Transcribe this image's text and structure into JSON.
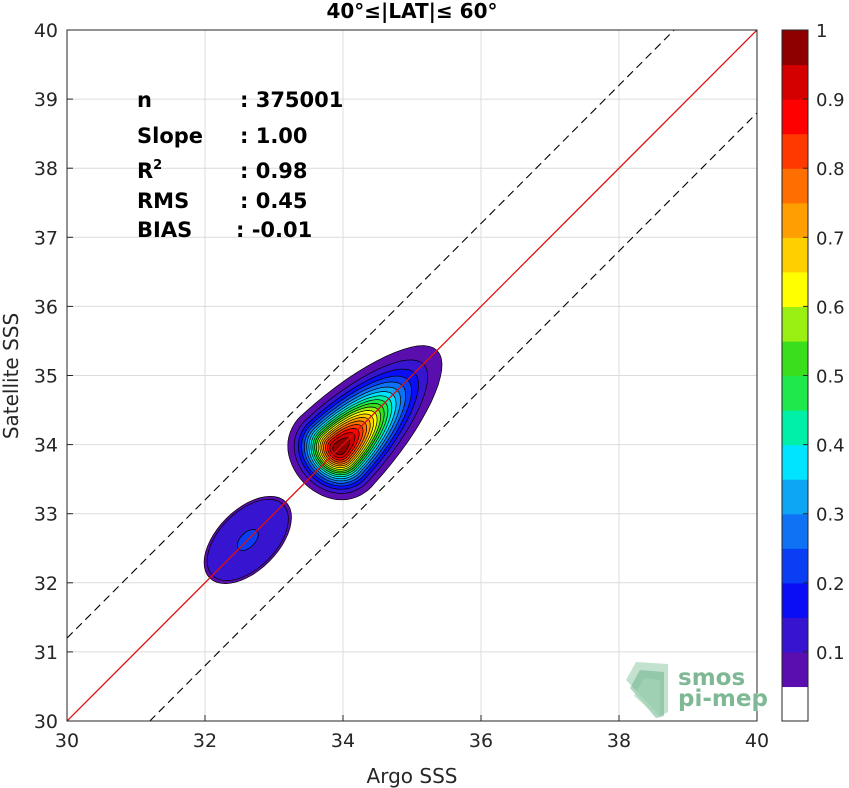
{
  "chart_data": {
    "type": "heatmap",
    "title": "40°≤|LAT|≤ 60°",
    "xlabel": "Argo SSS",
    "ylabel": "Satellite SSS",
    "xlim": [
      30,
      40
    ],
    "ylim": [
      30,
      40
    ],
    "xticks": [
      "30",
      "32",
      "34",
      "36",
      "38",
      "40"
    ],
    "yticks": [
      "30",
      "31",
      "32",
      "33",
      "34",
      "35",
      "36",
      "37",
      "38",
      "39",
      "40"
    ],
    "grid": true,
    "reference_lines": [
      {
        "name": "1:1 line",
        "slope": 1,
        "intercept": 0,
        "style": "solid",
        "color": "#dd1111"
      },
      {
        "name": "+1.2 offset",
        "slope": 1,
        "intercept": 1.2,
        "style": "dashed",
        "color": "#000000"
      },
      {
        "name": "-1.2 offset",
        "slope": 1,
        "intercept": -1.2,
        "style": "dashed",
        "color": "#000000"
      }
    ],
    "density_peaks": [
      {
        "x": 33.95,
        "y": 33.95,
        "peak_density": 1.0
      },
      {
        "x": 32.62,
        "y": 32.62,
        "peak_density": 0.25
      }
    ],
    "stats": [
      {
        "label": "n",
        "value": ": 375001"
      },
      {
        "label": "Slope",
        "value": ": 1.00"
      },
      {
        "label": "R²",
        "value": ": 0.98"
      },
      {
        "label": "RMS",
        "value": ": 0.45"
      },
      {
        "label": "BIAS",
        "value": ": -0.01"
      }
    ],
    "colorbar": {
      "ticks": [
        "0.1",
        "0.2",
        "0.3",
        "0.4",
        "0.5",
        "0.6",
        "0.7",
        "0.8",
        "0.9",
        "1"
      ],
      "levels": [
        0,
        0.05,
        0.1,
        0.15,
        0.2,
        0.25,
        0.3,
        0.35,
        0.4,
        0.45,
        0.5,
        0.55,
        0.6,
        0.65,
        0.7,
        0.75,
        0.8,
        0.85,
        0.9,
        0.95
      ],
      "colors": [
        "#ffffff",
        "#5a0eae",
        "#3715d0",
        "#0a0ef4",
        "#0a3ef4",
        "#0f72f4",
        "#0da6f4",
        "#00e4ff",
        "#00f0a8",
        "#1ee84c",
        "#3ade1c",
        "#9af012",
        "#ffff00",
        "#ffd000",
        "#ff9e00",
        "#ff6e00",
        "#ff3a00",
        "#ff0000",
        "#d40000",
        "#8e0000"
      ]
    }
  },
  "logo": {
    "line1": "smos",
    "line2": "pi-mep"
  }
}
